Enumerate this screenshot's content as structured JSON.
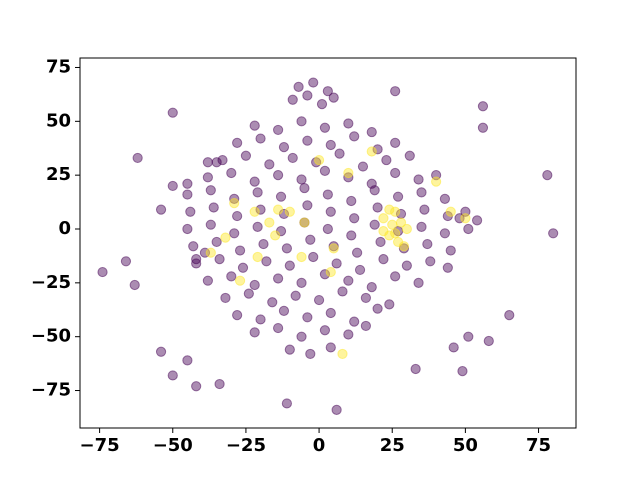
{
  "chart_data": {
    "type": "scatter",
    "xlim": [
      -81.7,
      87.8
    ],
    "ylim": [
      -92.4,
      79.4
    ],
    "xticks": [
      {
        "value": -75,
        "label": "−75"
      },
      {
        "value": -50,
        "label": "−50"
      },
      {
        "value": -25,
        "label": "−25"
      },
      0,
      25,
      50,
      75
    ],
    "yticks": [
      {
        "value": -75,
        "label": "−75"
      },
      {
        "value": -50,
        "label": "−50"
      },
      {
        "value": -25,
        "label": "−25"
      },
      0,
      25,
      50,
      75
    ],
    "series": [
      {
        "color": "#440154",
        "x": [
          -7,
          -2,
          3,
          -9,
          -4,
          1,
          5,
          -22,
          -14,
          -6,
          2,
          10,
          18,
          -28,
          -20,
          -12,
          -4,
          4,
          12,
          20,
          26,
          -38,
          -33,
          -25,
          -17,
          -9,
          -1,
          7,
          15,
          23,
          31,
          -38,
          -30,
          -22,
          -14,
          -6,
          2,
          10,
          18,
          26,
          34,
          40,
          -45,
          -37,
          -29,
          -21,
          -13,
          -5,
          3,
          11,
          19,
          27,
          35,
          43,
          -44,
          -36,
          -28,
          -20,
          -12,
          -4,
          4,
          12,
          20,
          28,
          36,
          44,
          50,
          -45,
          -37,
          -29,
          -21,
          -13,
          -5,
          3,
          11,
          19,
          27,
          35,
          43,
          51,
          -43,
          -35,
          -27,
          -19,
          -11,
          -3,
          5,
          13,
          21,
          29,
          37,
          45,
          -42,
          -34,
          -26,
          -18,
          -10,
          -2,
          6,
          14,
          22,
          30,
          38,
          44,
          -38,
          -30,
          -22,
          -14,
          -6,
          2,
          10,
          18,
          26,
          34,
          -32,
          -24,
          -16,
          -8,
          0,
          8,
          16,
          24,
          -28,
          -20,
          -12,
          -4,
          4,
          12,
          20,
          -22,
          -14,
          -6,
          2,
          10,
          16,
          -10,
          -3,
          4,
          -74,
          -66,
          -63,
          -62,
          -50,
          -54,
          -50,
          -45,
          -42,
          -34,
          -11,
          6,
          26,
          56,
          56,
          33,
          46,
          49,
          51,
          58,
          65,
          78,
          80,
          -54,
          -50,
          -45,
          -35,
          48,
          54,
          -42,
          -39
        ],
        "y": [
          66,
          68,
          64,
          60,
          62,
          58,
          61,
          48,
          46,
          50,
          47,
          49,
          45,
          40,
          42,
          38,
          41,
          39,
          43,
          37,
          40,
          31,
          32,
          34,
          30,
          33,
          31,
          35,
          29,
          32,
          34,
          24,
          26,
          22,
          25,
          23,
          27,
          24,
          21,
          26,
          23,
          25,
          16,
          18,
          14,
          17,
          15,
          19,
          16,
          13,
          18,
          15,
          17,
          14,
          8,
          10,
          6,
          9,
          7,
          11,
          8,
          5,
          10,
          7,
          9,
          6,
          8,
          0,
          2,
          -2,
          1,
          -1,
          3,
          0,
          -3,
          2,
          -1,
          1,
          -2,
          0,
          -8,
          -6,
          -10,
          -7,
          -9,
          -5,
          -8,
          -11,
          -6,
          -9,
          -7,
          -10,
          -16,
          -14,
          -18,
          -15,
          -17,
          -13,
          -16,
          -19,
          -14,
          -17,
          -15,
          -18,
          -24,
          -22,
          -26,
          -23,
          -25,
          -21,
          -24,
          -27,
          -22,
          -25,
          -32,
          -30,
          -34,
          -31,
          -33,
          -29,
          -32,
          -35,
          -40,
          -42,
          -38,
          -41,
          -39,
          -43,
          -37,
          -48,
          -46,
          -50,
          -47,
          -49,
          -45,
          -56,
          -58,
          -55,
          -20,
          -15,
          -26,
          33,
          54,
          -57,
          -68,
          -61,
          -73,
          -72,
          -81,
          -84,
          64,
          57,
          47,
          -65,
          -55,
          -66,
          -50,
          -52,
          -40,
          25,
          -2,
          9,
          20,
          21,
          31,
          5,
          4,
          -14,
          -11
        ]
      },
      {
        "color": "#fde725",
        "x": [
          22,
          26,
          28,
          24,
          27,
          30,
          22,
          25,
          29,
          24,
          5,
          -14,
          -10,
          -5,
          -22,
          -15,
          -37,
          -29,
          -32,
          10,
          0,
          -21,
          45,
          50,
          8,
          -6,
          4,
          18,
          -27,
          26,
          -17,
          40
        ],
        "y": [
          5,
          8,
          3,
          -3,
          -6,
          0,
          -1,
          2,
          -8,
          9,
          -9,
          9,
          8,
          3,
          8,
          -3,
          -11,
          12,
          -4,
          26,
          32,
          -13,
          8,
          5,
          -58,
          -13,
          -20,
          36,
          -24,
          -2,
          3,
          22
        ]
      }
    ]
  }
}
